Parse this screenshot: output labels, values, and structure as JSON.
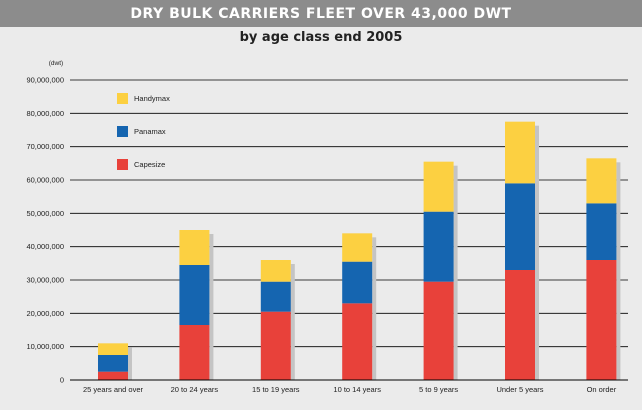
{
  "chart_data": {
    "type": "bar",
    "stacked": true,
    "title": "DRY BULK CARRIERS FLEET OVER 43,000 DWT",
    "subtitle": "by age class end 2005",
    "ylabel": "(dwt)",
    "ylim": [
      0,
      90000000
    ],
    "yticks": [
      0,
      10000000,
      20000000,
      30000000,
      40000000,
      50000000,
      60000000,
      70000000,
      80000000,
      90000000
    ],
    "ytick_labels": [
      "0",
      "10,000,000",
      "20,000,000",
      "30,000,000",
      "40,000,000",
      "50,000,000",
      "60,000,000",
      "70,000,000",
      "80,000,000",
      "90,000,000"
    ],
    "grid": true,
    "legend_placement": "top-left",
    "categories": [
      "25 years and over",
      "20 to 24 years",
      "15 to 19 years",
      "10 to 14 years",
      "5 to 9 years",
      "Under 5 years",
      "On order"
    ],
    "series": [
      {
        "name": "Capesize",
        "color": "#e8413a",
        "values": [
          2500000,
          16500000,
          20500000,
          23000000,
          29500000,
          33000000,
          36000000
        ]
      },
      {
        "name": "Panamax",
        "color": "#1565b0",
        "values": [
          5000000,
          18000000,
          9000000,
          12500000,
          21000000,
          26000000,
          17000000
        ]
      },
      {
        "name": "Handymax",
        "color": "#fcd041",
        "values": [
          3500000,
          10500000,
          6500000,
          8500000,
          15000000,
          18500000,
          13500000
        ]
      }
    ]
  }
}
